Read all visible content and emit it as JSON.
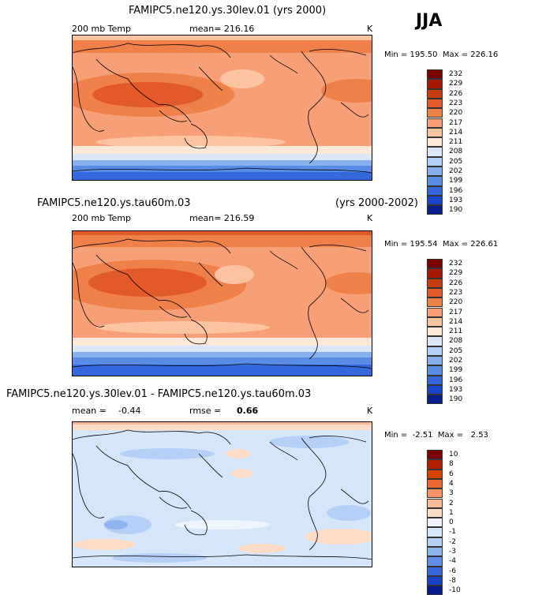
{
  "season": "JJA",
  "panels": [
    {
      "title": "FAMIPC5.ne120.ys.30lev.01 (yrs 2000)",
      "variable": "200 mb Temp",
      "stat": "mean= 216.16",
      "units": "K",
      "minmax": "Min = 195.50  Max = 226.16",
      "legend": [
        "232",
        "229",
        "226",
        "223",
        "220",
        "217",
        "214",
        "211",
        "208",
        "205",
        "202",
        "199",
        "196",
        "193",
        "190"
      ]
    },
    {
      "title_left": "FAMIPC5.ne120.ys.tau60m.03",
      "title_right": "(yrs 2000-2002)",
      "variable": "200 mb Temp",
      "stat": "mean= 216.59",
      "units": "K",
      "minmax": "Min = 195.54  Max = 226.61",
      "legend": [
        "232",
        "229",
        "226",
        "223",
        "220",
        "217",
        "214",
        "211",
        "208",
        "205",
        "202",
        "199",
        "196",
        "193",
        "190"
      ]
    },
    {
      "title": "FAMIPC5.ne120.ys.30lev.01 - FAMIPC5.ne120.ys.tau60m.03",
      "mean_label": "mean =",
      "mean_value": "-0.44",
      "rmse_label": "rmse =",
      "rmse_value": "0.66",
      "units": "K",
      "minmax": "Min =  -2.51  Max =   2.53",
      "legend": [
        "10",
        "8",
        "6",
        "4",
        "3",
        "2",
        "1",
        "0",
        "-1",
        "-2",
        "-3",
        "-4",
        "-6",
        "-8",
        "-10"
      ]
    }
  ],
  "colors": {
    "abs_scale": [
      "#7a0000",
      "#a51a00",
      "#c83a10",
      "#e25a28",
      "#f0804a",
      "#f7a077",
      "#fbc3a0",
      "#fde7d6",
      "#d9e7f8",
      "#b3cff5",
      "#87b1ee",
      "#5a8ce6",
      "#3468dc",
      "#1845c8",
      "#071f8f"
    ],
    "diff_scale": [
      "#7a0000",
      "#b01d00",
      "#d84400",
      "#ec6a30",
      "#f59068",
      "#f9b896",
      "#fddcc6",
      "#eef4fc",
      "#d6e6fa",
      "#b5d0f6",
      "#8fb5f0",
      "#5f8ee6",
      "#3867dc",
      "#1842c8",
      "#061a8c"
    ]
  },
  "chart_data": [
    {
      "type": "heatmap",
      "title": "FAMIPC5.ne120.ys.30lev.01 (yrs 2000)",
      "variable": "200 mb Temp",
      "units": "K",
      "mean": 216.16,
      "min": 195.5,
      "max": 226.16,
      "contour_levels": [
        190,
        193,
        196,
        199,
        202,
        205,
        208,
        211,
        214,
        217,
        220,
        223,
        226,
        229,
        232
      ]
    },
    {
      "type": "heatmap",
      "title": "FAMIPC5.ne120.ys.tau60m.03 (yrs 2000-2002)",
      "variable": "200 mb Temp",
      "units": "K",
      "mean": 216.59,
      "min": 195.54,
      "max": 226.61,
      "contour_levels": [
        190,
        193,
        196,
        199,
        202,
        205,
        208,
        211,
        214,
        217,
        220,
        223,
        226,
        229,
        232
      ]
    },
    {
      "type": "heatmap",
      "title": "FAMIPC5.ne120.ys.30lev.01 - FAMIPC5.ne120.ys.tau60m.03",
      "units": "K",
      "mean": -0.44,
      "rmse": 0.66,
      "min": -2.51,
      "max": 2.53,
      "contour_levels": [
        -10,
        -8,
        -6,
        -4,
        -3,
        -2,
        -1,
        0,
        1,
        2,
        3,
        4,
        6,
        8,
        10
      ]
    }
  ]
}
